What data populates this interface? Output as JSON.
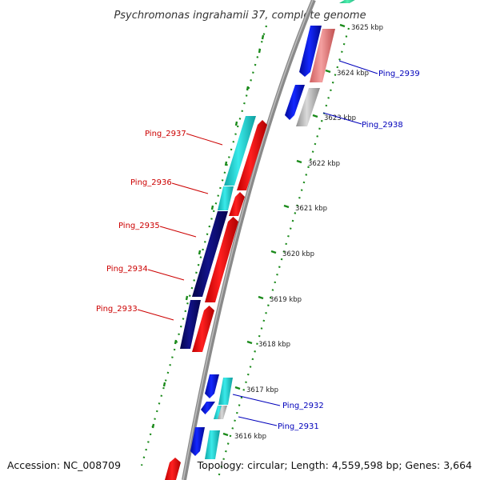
{
  "title": "Psychromonas ingrahamii 37, complete genome",
  "footer": {
    "accession": "Accession: NC_008709",
    "summary": "Topology: circular; Length: 4,559,598 bp; Genes: 3,664"
  },
  "colors": {
    "backbone": "#888888",
    "dots": "#1a8a1a",
    "red_label": "#cc0000",
    "blue_label": "#0000bb",
    "gene_red": "#ff0000",
    "gene_pink": "#f08a8a",
    "gene_blue": "#0a14e6",
    "gene_navy": "#0a0a78",
    "gene_cyan": "#19d2d2",
    "gene_gray": "#c0c0c0",
    "gene_green": "#2ee6a0"
  },
  "ticks": [
    {
      "label": "3625 kbp"
    },
    {
      "label": "3624 kbp"
    },
    {
      "label": "3623 kbp"
    },
    {
      "label": "3622 kbp"
    },
    {
      "label": "3621 kbp"
    },
    {
      "label": "3620 kbp"
    },
    {
      "label": "3619 kbp"
    },
    {
      "label": "3618 kbp"
    },
    {
      "label": "3617 kbp"
    },
    {
      "label": "3616 kbp"
    }
  ],
  "gene_labels": {
    "left": [
      "Ping_2937",
      "Ping_2936",
      "Ping_2935",
      "Ping_2934",
      "Ping_2933"
    ],
    "right": [
      "Ping_2939",
      "Ping_2938",
      "Ping_2932",
      "Ping_2931"
    ]
  }
}
